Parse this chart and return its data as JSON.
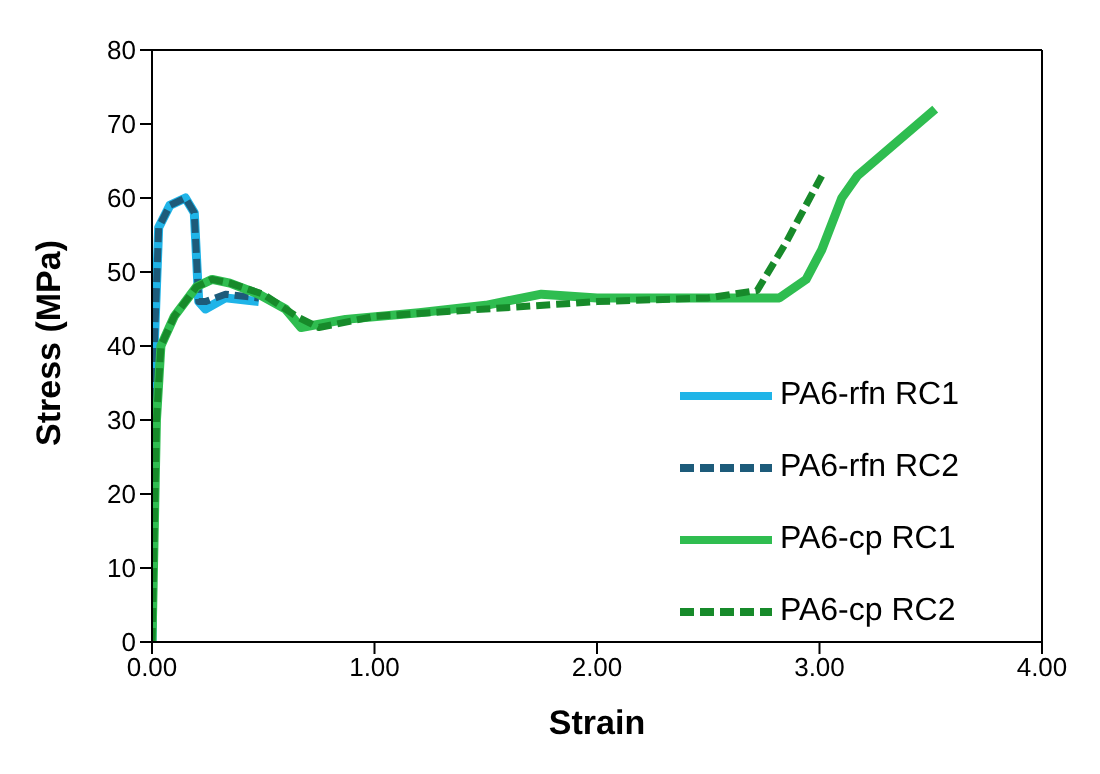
{
  "chart_data": {
    "type": "line",
    "xlabel": "Strain",
    "ylabel": "Stress (MPa)",
    "xlim": [
      0,
      4
    ],
    "xticks": [
      {
        "value": 0,
        "label": "0.00"
      },
      {
        "value": 1,
        "label": "1.00"
      },
      {
        "value": 2,
        "label": "2.00"
      },
      {
        "value": 3,
        "label": "3.00"
      },
      {
        "value": 4,
        "label": "4.00"
      }
    ],
    "ylim": [
      0,
      80
    ],
    "yticks": [
      0,
      10,
      20,
      30,
      40,
      50,
      60,
      70,
      80
    ],
    "legend": "right",
    "marker": "none",
    "series": [
      {
        "name": "PA6-rfn RC1",
        "color": "#1fb4e8",
        "line_style": "solid",
        "x": [
          0,
          0.01,
          0.03,
          0.08,
          0.15,
          0.19,
          0.21,
          0.24,
          0.33,
          0.48
        ],
        "values": [
          0,
          40,
          56,
          59,
          60,
          58,
          46,
          45,
          46.5,
          46
        ]
      },
      {
        "name": "PA6-rfn RC2",
        "color": "#1d5b7a",
        "line_style": "dashed",
        "x": [
          0,
          0.01,
          0.03,
          0.08,
          0.15,
          0.19,
          0.21,
          0.24,
          0.33,
          0.48
        ],
        "values": [
          0,
          40,
          56,
          59,
          60,
          58,
          46,
          46,
          47,
          46.5
        ]
      },
      {
        "name": "PA6-cp RC1",
        "color": "#2fbd50",
        "line_style": "solid",
        "x": [
          0,
          0.02,
          0.04,
          0.1,
          0.2,
          0.27,
          0.35,
          0.48,
          0.6,
          0.67,
          0.87,
          1.2,
          1.5,
          1.75,
          2.0,
          2.5,
          2.82,
          2.94,
          3.01,
          3.1,
          3.17,
          3.52
        ],
        "values": [
          0,
          30,
          40,
          44,
          48,
          49,
          48.5,
          47,
          45,
          42.5,
          43.6,
          44.5,
          45.5,
          47,
          46.5,
          46.5,
          46.5,
          49,
          53,
          60,
          63,
          72
        ]
      },
      {
        "name": "PA6-cp RC2",
        "color": "#178a2a",
        "line_style": "dashed",
        "x": [
          0,
          0.02,
          0.04,
          0.1,
          0.2,
          0.27,
          0.35,
          0.5,
          0.65,
          0.75,
          1.0,
          1.5,
          2.0,
          2.5,
          2.72,
          2.85,
          3.01
        ],
        "values": [
          0,
          30,
          40,
          44,
          48,
          49,
          48.5,
          47,
          44,
          42.5,
          44,
          45,
          46,
          46.5,
          47.5,
          54,
          63
        ]
      }
    ]
  }
}
